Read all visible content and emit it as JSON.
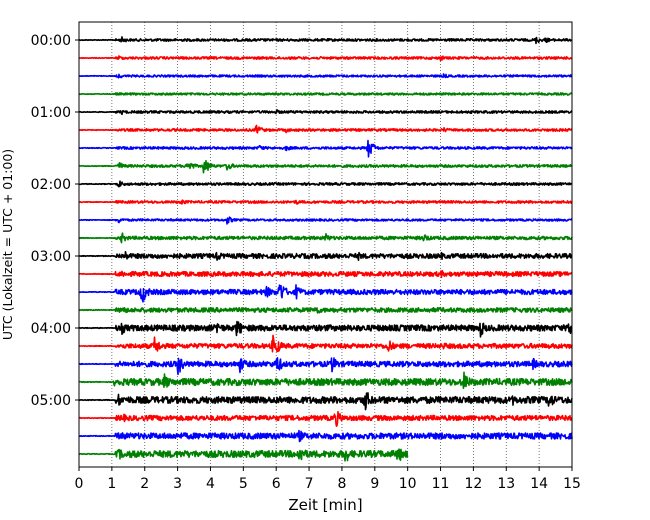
{
  "chart_data": {
    "type": "line",
    "title": "",
    "xlabel": "Zeit  [min]",
    "ylabel": "UTC (Lokalzeit = UTC + 01:00)",
    "xlim": [
      0,
      15
    ],
    "x_ticks": [
      0,
      1,
      2,
      3,
      4,
      5,
      6,
      7,
      8,
      9,
      10,
      11,
      12,
      13,
      14,
      15
    ],
    "y_tick_labels": [
      "00:00",
      "01:00",
      "02:00",
      "03:00",
      "04:00",
      "05:00"
    ],
    "traces_per_hour": 4,
    "grid": "vertical dotted at each minute",
    "trace_colors": [
      "#000000",
      "#ff0000",
      "#0000ff",
      "#008000"
    ],
    "trace_units": "minutes",
    "traces": [
      {
        "row": 0,
        "start": 0,
        "end": 15,
        "activity_start": 1.1,
        "noise": 0.35,
        "amp": 1.0,
        "events": [
          {
            "t": 1.3,
            "a": 1.5
          },
          {
            "t": 13.9,
            "a": 1.8
          },
          {
            "t": 14.2,
            "a": 1.3
          }
        ]
      },
      {
        "row": 1,
        "start": 0,
        "end": 15,
        "activity_start": 1.1,
        "noise": 0.35,
        "amp": 1.0,
        "events": [
          {
            "t": 1.2,
            "a": 1.2
          },
          {
            "t": 11.0,
            "a": 1.3
          }
        ]
      },
      {
        "row": 2,
        "start": 0,
        "end": 15,
        "activity_start": 1.1,
        "noise": 0.3,
        "amp": 0.9,
        "events": [
          {
            "t": 1.2,
            "a": 1.2
          },
          {
            "t": 11.1,
            "a": 1.1
          }
        ]
      },
      {
        "row": 3,
        "start": 0,
        "end": 15,
        "activity_start": 1.1,
        "noise": 0.3,
        "amp": 0.9,
        "events": []
      },
      {
        "row": 4,
        "start": 0,
        "end": 15,
        "activity_start": 1.1,
        "noise": 0.35,
        "amp": 1.0,
        "events": [
          {
            "t": 1.3,
            "a": 1.2
          },
          {
            "t": 6.0,
            "a": 1.1
          }
        ]
      },
      {
        "row": 5,
        "start": 0,
        "end": 15,
        "activity_start": 1.1,
        "noise": 0.35,
        "amp": 1.0,
        "events": [
          {
            "t": 5.4,
            "a": 2.5
          },
          {
            "t": 6.3,
            "a": 1.2
          },
          {
            "t": 11.1,
            "a": 1.2
          }
        ]
      },
      {
        "row": 6,
        "start": 0,
        "end": 15,
        "activity_start": 1.1,
        "noise": 0.35,
        "amp": 1.0,
        "events": [
          {
            "t": 5.5,
            "a": 1.4
          },
          {
            "t": 6.3,
            "a": 1.4
          },
          {
            "t": 8.8,
            "a": 4.5
          }
        ]
      },
      {
        "row": 7,
        "start": 0,
        "end": 15,
        "activity_start": 1.1,
        "noise": 0.4,
        "amp": 1.0,
        "events": [
          {
            "t": 1.2,
            "a": 2.0
          },
          {
            "t": 3.3,
            "a": 3.0
          },
          {
            "t": 3.8,
            "a": 4.0
          },
          {
            "t": 4.5,
            "a": 2.2
          }
        ]
      },
      {
        "row": 8,
        "start": 0,
        "end": 15,
        "activity_start": 1.1,
        "noise": 0.35,
        "amp": 1.0,
        "events": [
          {
            "t": 1.2,
            "a": 1.8
          }
        ]
      },
      {
        "row": 9,
        "start": 0,
        "end": 15,
        "activity_start": 1.1,
        "noise": 0.35,
        "amp": 1.0,
        "events": [
          {
            "t": 3.1,
            "a": 1.5
          },
          {
            "t": 6.6,
            "a": 1.2
          }
        ]
      },
      {
        "row": 10,
        "start": 0,
        "end": 15,
        "activity_start": 1.1,
        "noise": 0.3,
        "amp": 0.9,
        "events": [
          {
            "t": 1.2,
            "a": 1.5
          },
          {
            "t": 4.5,
            "a": 2.0
          }
        ]
      },
      {
        "row": 11,
        "start": 0,
        "end": 15,
        "activity_start": 1.1,
        "noise": 0.5,
        "amp": 1.2,
        "events": [
          {
            "t": 1.3,
            "a": 2.5
          },
          {
            "t": 7.5,
            "a": 2.2
          },
          {
            "t": 10.5,
            "a": 2.2
          }
        ]
      },
      {
        "row": 12,
        "start": 0,
        "end": 15,
        "activity_start": 1.1,
        "noise": 0.9,
        "amp": 1.3,
        "events": [
          {
            "t": 1.4,
            "a": 2.5
          },
          {
            "t": 4.2,
            "a": 2.4
          },
          {
            "t": 8.5,
            "a": 2.0
          },
          {
            "t": 11.0,
            "a": 2.0
          }
        ]
      },
      {
        "row": 13,
        "start": 0,
        "end": 15,
        "activity_start": 1.1,
        "noise": 0.9,
        "amp": 1.3,
        "events": [
          {
            "t": 1.3,
            "a": 2.0
          },
          {
            "t": 11.0,
            "a": 2.0
          }
        ]
      },
      {
        "row": 14,
        "start": 0,
        "end": 15,
        "activity_start": 1.1,
        "noise": 0.9,
        "amp": 1.4,
        "events": [
          {
            "t": 1.9,
            "a": 6.0
          },
          {
            "t": 5.7,
            "a": 3.0
          },
          {
            "t": 6.1,
            "a": 5.5
          },
          {
            "t": 6.6,
            "a": 3.5
          }
        ]
      },
      {
        "row": 15,
        "start": 0,
        "end": 15,
        "activity_start": 1.1,
        "noise": 0.8,
        "amp": 1.3,
        "events": [
          {
            "t": 1.3,
            "a": 2.5
          },
          {
            "t": 7.2,
            "a": 2.5
          },
          {
            "t": 11.0,
            "a": 1.5
          }
        ]
      },
      {
        "row": 16,
        "start": 0,
        "end": 15,
        "activity_start": 1.1,
        "noise": 1.2,
        "amp": 1.4,
        "events": [
          {
            "t": 1.3,
            "a": 3.0
          },
          {
            "t": 4.2,
            "a": 3.5
          },
          {
            "t": 4.8,
            "a": 4.5
          },
          {
            "t": 12.2,
            "a": 4.5
          },
          {
            "t": 14.9,
            "a": 4.0
          }
        ]
      },
      {
        "row": 17,
        "start": 0,
        "end": 15,
        "activity_start": 1.1,
        "noise": 0.9,
        "amp": 1.3,
        "events": [
          {
            "t": 2.3,
            "a": 4.5
          },
          {
            "t": 5.9,
            "a": 5.0
          },
          {
            "t": 6.0,
            "a": 4.0
          },
          {
            "t": 9.4,
            "a": 3.5
          },
          {
            "t": 11.1,
            "a": 1.8
          }
        ]
      },
      {
        "row": 18,
        "start": 0,
        "end": 15,
        "activity_start": 1.1,
        "noise": 1.0,
        "amp": 1.4,
        "events": [
          {
            "t": 3.0,
            "a": 5.5
          },
          {
            "t": 4.9,
            "a": 4.0
          },
          {
            "t": 6.0,
            "a": 5.0
          },
          {
            "t": 7.7,
            "a": 4.0
          },
          {
            "t": 13.8,
            "a": 3.0
          }
        ]
      },
      {
        "row": 19,
        "start": 0,
        "end": 15,
        "activity_start": 1.1,
        "noise": 1.3,
        "amp": 1.5,
        "events": [
          {
            "t": 1.1,
            "a": 3.0
          },
          {
            "t": 2.6,
            "a": 4.0
          },
          {
            "t": 11.7,
            "a": 5.0
          }
        ]
      },
      {
        "row": 20,
        "start": 0,
        "end": 15,
        "activity_start": 1.1,
        "noise": 1.3,
        "amp": 1.5,
        "events": [
          {
            "t": 1.2,
            "a": 3.0
          },
          {
            "t": 8.7,
            "a": 5.5
          },
          {
            "t": 13.2,
            "a": 2.5
          },
          {
            "t": 14.3,
            "a": 4.5
          }
        ]
      },
      {
        "row": 21,
        "start": 0,
        "end": 15,
        "activity_start": 1.1,
        "noise": 1.0,
        "amp": 1.3,
        "events": [
          {
            "t": 1.3,
            "a": 2.5
          },
          {
            "t": 7.8,
            "a": 4.5
          }
        ]
      },
      {
        "row": 22,
        "start": 0,
        "end": 15,
        "activity_start": 1.1,
        "noise": 1.2,
        "amp": 1.4,
        "events": [
          {
            "t": 1.3,
            "a": 2.5
          },
          {
            "t": 6.7,
            "a": 3.0
          },
          {
            "t": 11.0,
            "a": 2.0
          }
        ]
      },
      {
        "row": 23,
        "start": 0,
        "end": 10,
        "activity_start": 1.1,
        "noise": 1.3,
        "amp": 1.5,
        "events": [
          {
            "t": 1.2,
            "a": 3.0
          },
          {
            "t": 6.7,
            "a": 5.0
          },
          {
            "t": 8.1,
            "a": 4.5
          },
          {
            "t": 9.7,
            "a": 4.5
          }
        ]
      }
    ]
  }
}
